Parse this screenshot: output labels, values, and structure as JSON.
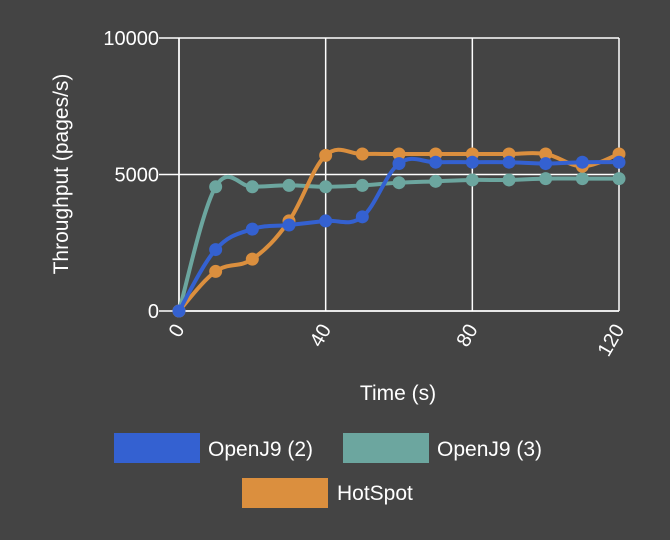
{
  "chart_data": {
    "type": "line",
    "xlabel": "Time (s)",
    "ylabel": "Throughput (pages/s)",
    "xlim": [
      0,
      120
    ],
    "ylim": [
      0,
      10000
    ],
    "x_ticks": [
      "0",
      "40",
      "80",
      "120"
    ],
    "y_ticks": [
      "0",
      "5000",
      "10000"
    ],
    "grid": true,
    "legend_position": "bottom",
    "series": [
      {
        "name": "OpenJ9 (2)",
        "color": "#3461d1",
        "x": [
          0,
          10,
          20,
          30,
          40,
          50,
          60,
          70,
          80,
          90,
          100,
          110,
          120
        ],
        "y": [
          0,
          2250,
          3000,
          3150,
          3300,
          3450,
          5400,
          5450,
          5450,
          5450,
          5400,
          5450,
          5450
        ]
      },
      {
        "name": "OpenJ9 (3)",
        "color": "#6ca69f",
        "x": [
          0,
          10,
          20,
          30,
          40,
          50,
          60,
          70,
          80,
          90,
          100,
          110,
          120
        ],
        "y": [
          0,
          4550,
          4550,
          4600,
          4550,
          4600,
          4700,
          4750,
          4800,
          4800,
          4850,
          4850,
          4850
        ]
      },
      {
        "name": "HotSpot",
        "color": "#db8f3e",
        "x": [
          0,
          10,
          20,
          30,
          40,
          50,
          60,
          70,
          80,
          90,
          100,
          110,
          120
        ],
        "y": [
          0,
          1450,
          1900,
          3300,
          5700,
          5750,
          5750,
          5750,
          5750,
          5750,
          5750,
          5300,
          5750
        ]
      }
    ]
  }
}
